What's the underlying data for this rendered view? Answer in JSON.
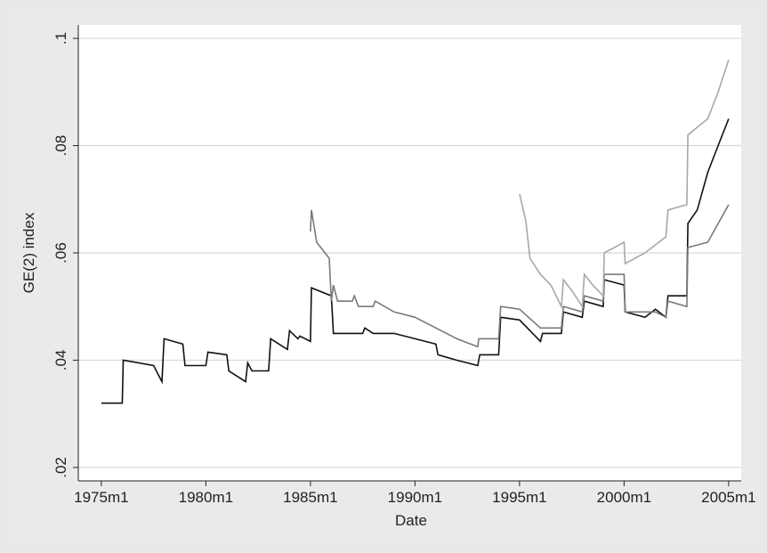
{
  "chart_data": {
    "type": "line",
    "xlabel": "Date",
    "ylabel": "GE(2) index",
    "xlim": [
      1973.9,
      2005.6
    ],
    "ylim": [
      0.0175,
      0.1025
    ],
    "xticks": [
      {
        "value": 1975,
        "label": "1975m1"
      },
      {
        "value": 1980,
        "label": "1980m1"
      },
      {
        "value": 1985,
        "label": "1985m1"
      },
      {
        "value": 1990,
        "label": "1990m1"
      },
      {
        "value": 1995,
        "label": "1995m1"
      },
      {
        "value": 2000,
        "label": "2000m1"
      },
      {
        "value": 2005,
        "label": "2005m1"
      }
    ],
    "yticks": [
      {
        "value": 0.02,
        "label": ".02"
      },
      {
        "value": 0.04,
        "label": ".04"
      },
      {
        "value": 0.06,
        "label": ".06"
      },
      {
        "value": 0.08,
        "label": ".08"
      },
      {
        "value": 0.1,
        "label": ".1"
      }
    ],
    "grid": true,
    "series": [
      {
        "color": "#111111",
        "x": [
          1975,
          1976,
          1976.05,
          1977.5,
          1977.9,
          1978,
          1978.9,
          1979,
          1980,
          1980.1,
          1981,
          1981.1,
          1981.9,
          1982,
          1982.2,
          1983,
          1983.1,
          1983.9,
          1984,
          1984.4,
          1984.5,
          1985,
          1985.05,
          1986,
          1986.1,
          1987.5,
          1987.6,
          1988,
          1989,
          1990,
          1991,
          1991.1,
          1992,
          1993,
          1993.1,
          1994,
          1994.1,
          1995,
          1995.5,
          1996,
          1996.1,
          1997,
          1997.1,
          1998,
          1998.1,
          1999,
          1999.05,
          2000,
          2000.05,
          2001,
          2001.5,
          2002,
          2002.1,
          2003,
          2003.05,
          2003.5,
          2004,
          2004.5,
          2005
        ],
        "values": [
          0.032,
          0.032,
          0.04,
          0.039,
          0.036,
          0.044,
          0.043,
          0.039,
          0.039,
          0.0415,
          0.041,
          0.038,
          0.036,
          0.0395,
          0.038,
          0.038,
          0.044,
          0.042,
          0.0455,
          0.044,
          0.0445,
          0.0435,
          0.0535,
          0.052,
          0.045,
          0.045,
          0.046,
          0.045,
          0.045,
          0.044,
          0.043,
          0.041,
          0.04,
          0.039,
          0.041,
          0.041,
          0.048,
          0.0475,
          0.0455,
          0.0435,
          0.045,
          0.045,
          0.049,
          0.048,
          0.051,
          0.05,
          0.055,
          0.054,
          0.049,
          0.048,
          0.0495,
          0.048,
          0.052,
          0.052,
          0.0655,
          0.068,
          0.075,
          0.08,
          0.085
        ]
      },
      {
        "color": "#7a7a7a",
        "x": [
          1985,
          1985.05,
          1985.3,
          1985.9,
          1986,
          1986.1,
          1986.3,
          1987,
          1987.1,
          1987.3,
          1988,
          1988.1,
          1989,
          1990,
          1991,
          1992,
          1993,
          1993.05,
          1994,
          1994.1,
          1995,
          1996,
          1997,
          1997.1,
          1998,
          1998.1,
          1999,
          1999.05,
          2000,
          2000.05,
          2001,
          2001.5,
          2002,
          2002.1,
          2003,
          2003.05,
          2004,
          2005
        ],
        "values": [
          0.064,
          0.068,
          0.062,
          0.059,
          0.051,
          0.054,
          0.051,
          0.051,
          0.052,
          0.05,
          0.05,
          0.051,
          0.049,
          0.048,
          0.046,
          0.044,
          0.0425,
          0.044,
          0.044,
          0.05,
          0.0495,
          0.046,
          0.046,
          0.05,
          0.049,
          0.052,
          0.051,
          0.056,
          0.056,
          0.049,
          0.049,
          0.049,
          0.048,
          0.051,
          0.05,
          0.061,
          0.062,
          0.069
        ]
      },
      {
        "color": "#a8a8a8",
        "x": [
          1995,
          1995.3,
          1995.5,
          1996,
          1996.5,
          1997,
          1997.1,
          1997.5,
          1998,
          1998.1,
          1998.5,
          1999,
          1999.05,
          2000,
          2000.05,
          2001,
          2002,
          2002.1,
          2003,
          2003.05,
          2004,
          2004.5,
          2005
        ],
        "values": [
          0.071,
          0.066,
          0.059,
          0.056,
          0.054,
          0.05,
          0.055,
          0.053,
          0.05,
          0.056,
          0.054,
          0.052,
          0.06,
          0.062,
          0.058,
          0.06,
          0.063,
          0.068,
          0.069,
          0.082,
          0.085,
          0.09,
          0.096
        ]
      }
    ]
  }
}
